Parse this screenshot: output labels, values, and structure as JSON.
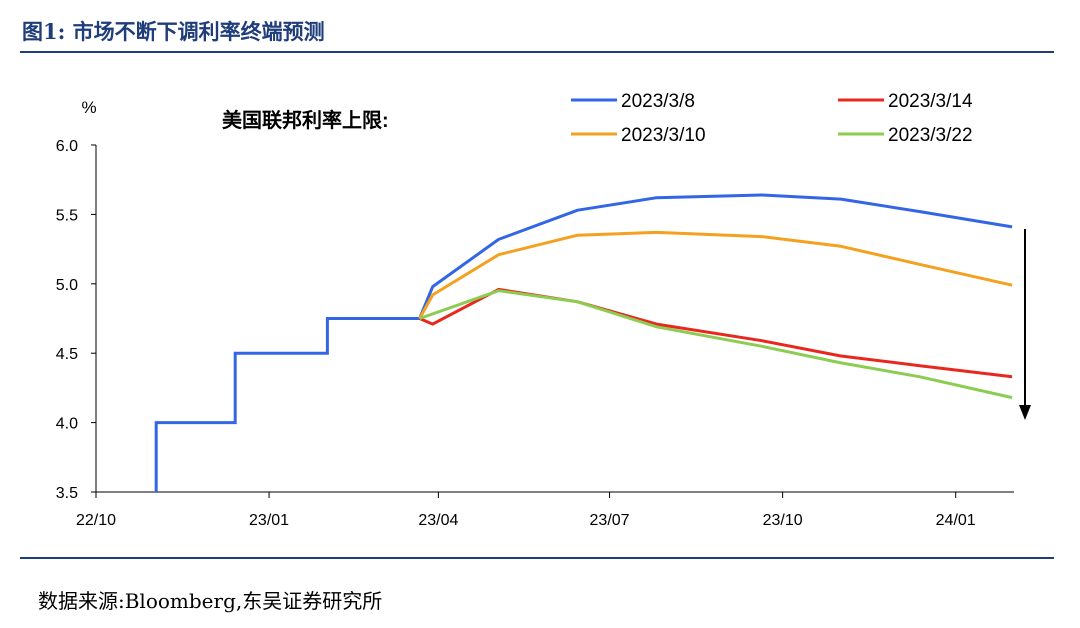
{
  "figure": {
    "title": "图1:  市场不断下调利率终端预测",
    "source": "数据来源:Bloomberg,东吴证券研究所"
  },
  "chart_data": {
    "type": "line",
    "title": "美国联邦利率上限:",
    "ylabel": "%",
    "ylim": [
      3.5,
      6.0
    ],
    "yticks": [
      "3.5",
      "4.0",
      "4.5",
      "5.0",
      "5.5",
      "6.0"
    ],
    "xticks": [
      "22/10",
      "23/01",
      "23/04",
      "23/07",
      "23/10",
      "24/01"
    ],
    "xlim": [
      "2022-10-01",
      "2024-02-01"
    ],
    "grid": false,
    "legend": "top-right",
    "colors": {
      "historical": "#3366e6",
      "2023/3/8": "#3366e6",
      "2023/3/14": "#e8281e",
      "2023/3/10": "#f4a020",
      "2023/3/22": "#8ccc50",
      "arrow": "#000000"
    },
    "historical": [
      [
        "2022-11-02",
        3.5
      ],
      [
        "2022-11-02",
        4.0
      ],
      [
        "2022-12-14",
        4.0
      ],
      [
        "2022-12-14",
        4.5
      ],
      [
        "2023-02-01",
        4.5
      ],
      [
        "2023-02-01",
        4.75
      ],
      [
        "2023-03-22",
        4.75
      ]
    ],
    "series": [
      {
        "name": "2023/3/8",
        "points": [
          [
            "2023-03-22",
            4.75
          ],
          [
            "2023-03-29",
            4.98
          ],
          [
            "2023-05-03",
            5.32
          ],
          [
            "2023-06-14",
            5.53
          ],
          [
            "2023-07-26",
            5.62
          ],
          [
            "2023-09-20",
            5.64
          ],
          [
            "2023-11-01",
            5.61
          ],
          [
            "2023-12-13",
            5.52
          ],
          [
            "2024-01-31",
            5.41
          ]
        ]
      },
      {
        "name": "2023/3/10",
        "points": [
          [
            "2023-03-22",
            4.75
          ],
          [
            "2023-03-29",
            4.92
          ],
          [
            "2023-05-03",
            5.21
          ],
          [
            "2023-06-14",
            5.35
          ],
          [
            "2023-07-26",
            5.37
          ],
          [
            "2023-09-20",
            5.34
          ],
          [
            "2023-11-01",
            5.27
          ],
          [
            "2023-12-13",
            5.14
          ],
          [
            "2024-01-31",
            4.99
          ]
        ]
      },
      {
        "name": "2023/3/14",
        "points": [
          [
            "2023-03-22",
            4.75
          ],
          [
            "2023-03-29",
            4.71
          ],
          [
            "2023-05-03",
            4.96
          ],
          [
            "2023-06-14",
            4.87
          ],
          [
            "2023-07-26",
            4.71
          ],
          [
            "2023-09-20",
            4.59
          ],
          [
            "2023-11-01",
            4.48
          ],
          [
            "2023-12-13",
            4.41
          ],
          [
            "2024-01-31",
            4.33
          ]
        ]
      },
      {
        "name": "2023/3/22",
        "points": [
          [
            "2023-03-22",
            4.75
          ],
          [
            "2023-05-03",
            4.95
          ],
          [
            "2023-06-14",
            4.87
          ],
          [
            "2023-07-26",
            4.69
          ],
          [
            "2023-09-20",
            4.55
          ],
          [
            "2023-11-01",
            4.43
          ],
          [
            "2023-12-13",
            4.33
          ],
          [
            "2024-01-31",
            4.18
          ]
        ]
      }
    ]
  }
}
